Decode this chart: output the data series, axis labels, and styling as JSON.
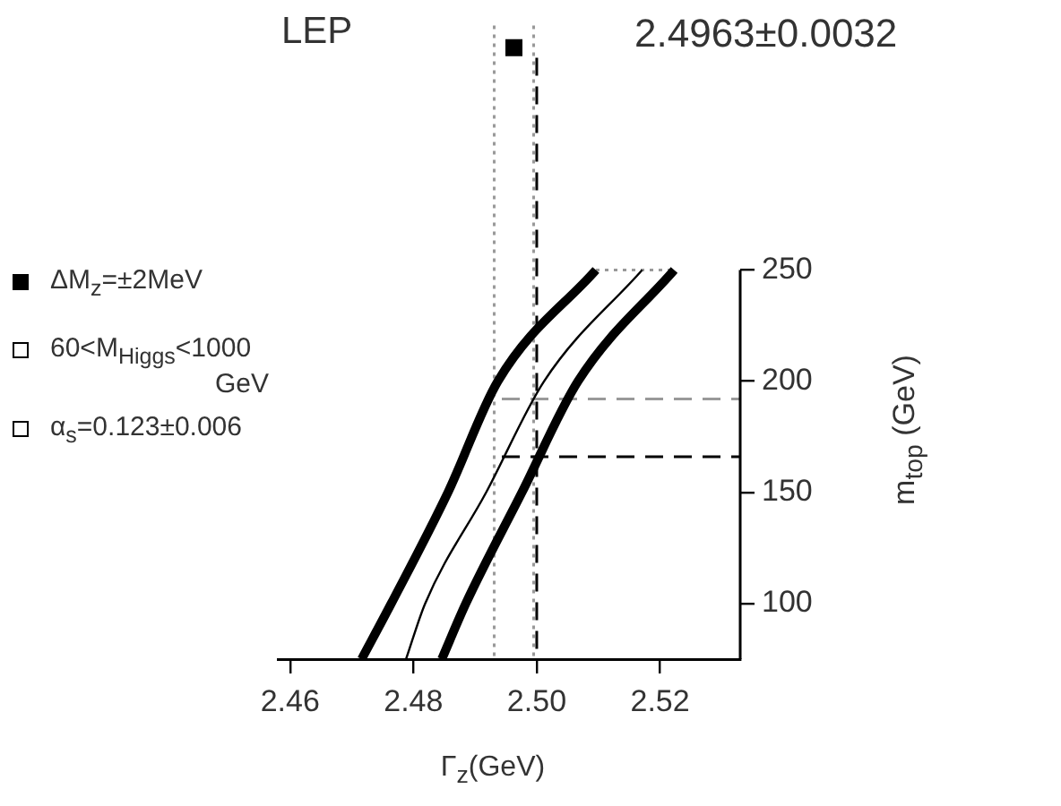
{
  "chart_data": {
    "type": "line",
    "xlabel": "Γ$_{z}$(GeV)",
    "ylabel": "m$_{top}$ (GeV)",
    "xlim": [
      2.458,
      2.533
    ],
    "xticks": [
      2.46,
      2.48,
      {
        "value": 2.5,
        "label": "2.50"
      },
      2.52
    ],
    "ylim": [
      75,
      360
    ],
    "yticks": [
      100,
      150,
      200,
      250
    ],
    "series": [
      {
        "color": "#000000",
        "x": [
          2.4716,
          2.4764,
          2.4856,
          2.4937,
          2.5096
        ],
        "values": [
          75,
          100,
          150,
          200,
          250
        ]
      },
      {
        "color": "#000000",
        "x": [
          2.4788,
          2.4819,
          2.4918,
          2.5012,
          2.5171
        ],
        "values": [
          75,
          100,
          150,
          200,
          250
        ]
      },
      {
        "color": "#000000",
        "x": [
          2.4846,
          2.4885,
          2.4976,
          2.5067,
          2.5223
        ],
        "values": [
          75,
          100,
          150,
          200,
          250
        ]
      },
      {
        "color": "#999999",
        "line_style": "dotted",
        "x": [
          2.5096,
          2.5223
        ],
        "values": [
          250,
          250
        ]
      },
      {
        "type": "scatter",
        "marker": "square",
        "color": "#000000",
        "x": [
          2.4963
        ],
        "values": [
          350
        ]
      }
    ],
    "ref_lines": [
      {
        "axis": "x",
        "value": 2.4931,
        "color": "#999999",
        "line_style": "dotted"
      },
      {
        "axis": "x",
        "value": 2.4995,
        "color": "#999999",
        "line_style": "dotted"
      },
      {
        "axis": "x",
        "value": 2.5,
        "color": "#000000",
        "line_style": "dashed"
      },
      {
        "axis": "y",
        "value": 166,
        "color": "#000000",
        "line_style": "dashed"
      },
      {
        "axis": "y",
        "value": 192,
        "color": "#999999",
        "line_style": "dashed"
      }
    ],
    "annotations": [
      "LEP",
      "2.4963±0.0032",
      "ΔM$_{z}$=±2MeV",
      "60<M$_{Higgs}$<1000 GeV",
      "α$_{s}$=0.123±0.006"
    ]
  }
}
